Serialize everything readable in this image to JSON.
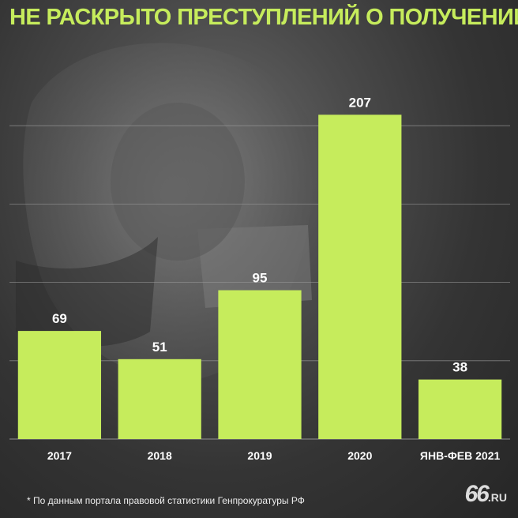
{
  "title": "НЕ РАСКРЫТО ПРЕСТУПЛЕНИЙ О ПОЛУЧЕНИИ ВЗЯТКИ",
  "footnote": "* По данным портала правовой статистики Генпрокуратуры РФ",
  "logo": {
    "main": "66",
    "suffix": ".RU"
  },
  "colors": {
    "bar": "#c6ec5c",
    "title": "#c6ec5c",
    "grid": "#9a9a9a",
    "text": "#ffffff"
  },
  "chart_data": {
    "type": "bar",
    "title": "НЕ РАСКРЫТО ПРЕСТУПЛЕНИЙ О ПОЛУЧЕНИИ ВЗЯТКИ",
    "categories": [
      "2017",
      "2018",
      "2019",
      "2020",
      "ЯНВ-ФЕВ 2021"
    ],
    "values": [
      69,
      51,
      95,
      207,
      38
    ],
    "xlabel": "",
    "ylabel": "",
    "ylim": [
      0,
      250
    ],
    "grid": true,
    "legend": "none"
  }
}
